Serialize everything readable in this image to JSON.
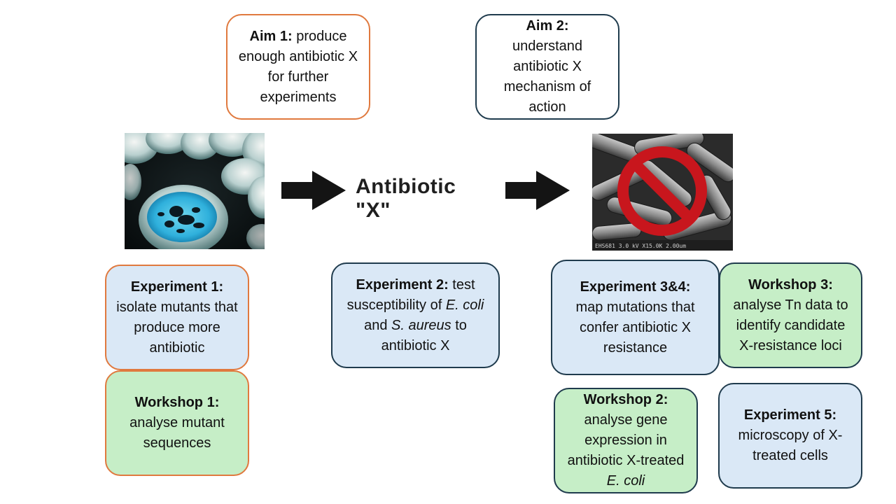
{
  "center_label": "Antibiotic \"X\"",
  "aim1": {
    "title": "Aim 1:",
    "text": " produce enough antibiotic X for further experiments"
  },
  "aim2": {
    "title": "Aim 2:",
    "text": "understand antibiotic X mechanism of action"
  },
  "exp1": {
    "title": "Experiment 1:",
    "text": "isolate mutants that produce more antibiotic"
  },
  "ws1": {
    "title": "Workshop 1:",
    "text": "analyse mutant sequences"
  },
  "exp2": {
    "title": "Experiment 2:",
    "t1": " test susceptibility of ",
    "i1": "E. coli",
    "t2": " and ",
    "i2": "S. aureus",
    "t3": " to antibiotic X"
  },
  "exp34": {
    "title": "Experiment 3&4:",
    "text": "map mutations that confer antibiotic X resistance"
  },
  "ws3": {
    "title": "Workshop 3:",
    "text": "analyse Tn data to identify candidate X-resistance loci"
  },
  "ws2": {
    "title": "Workshop 2:",
    "t1": "analyse gene expression in antibiotic X-treated ",
    "i1": "E. coli"
  },
  "exp5": {
    "title": "Experiment 5:",
    "text": "microscopy of X-treated cells"
  },
  "micrograph_caption": "EHS681 3.0 kV X15.0K 2.00um",
  "colors": {
    "blue_fill": "#dae8f6",
    "green_fill": "#c6eec7",
    "orange_border": "#e0793e",
    "dark_border": "#1f3b4d",
    "prohibition_red": "#c8161d"
  }
}
